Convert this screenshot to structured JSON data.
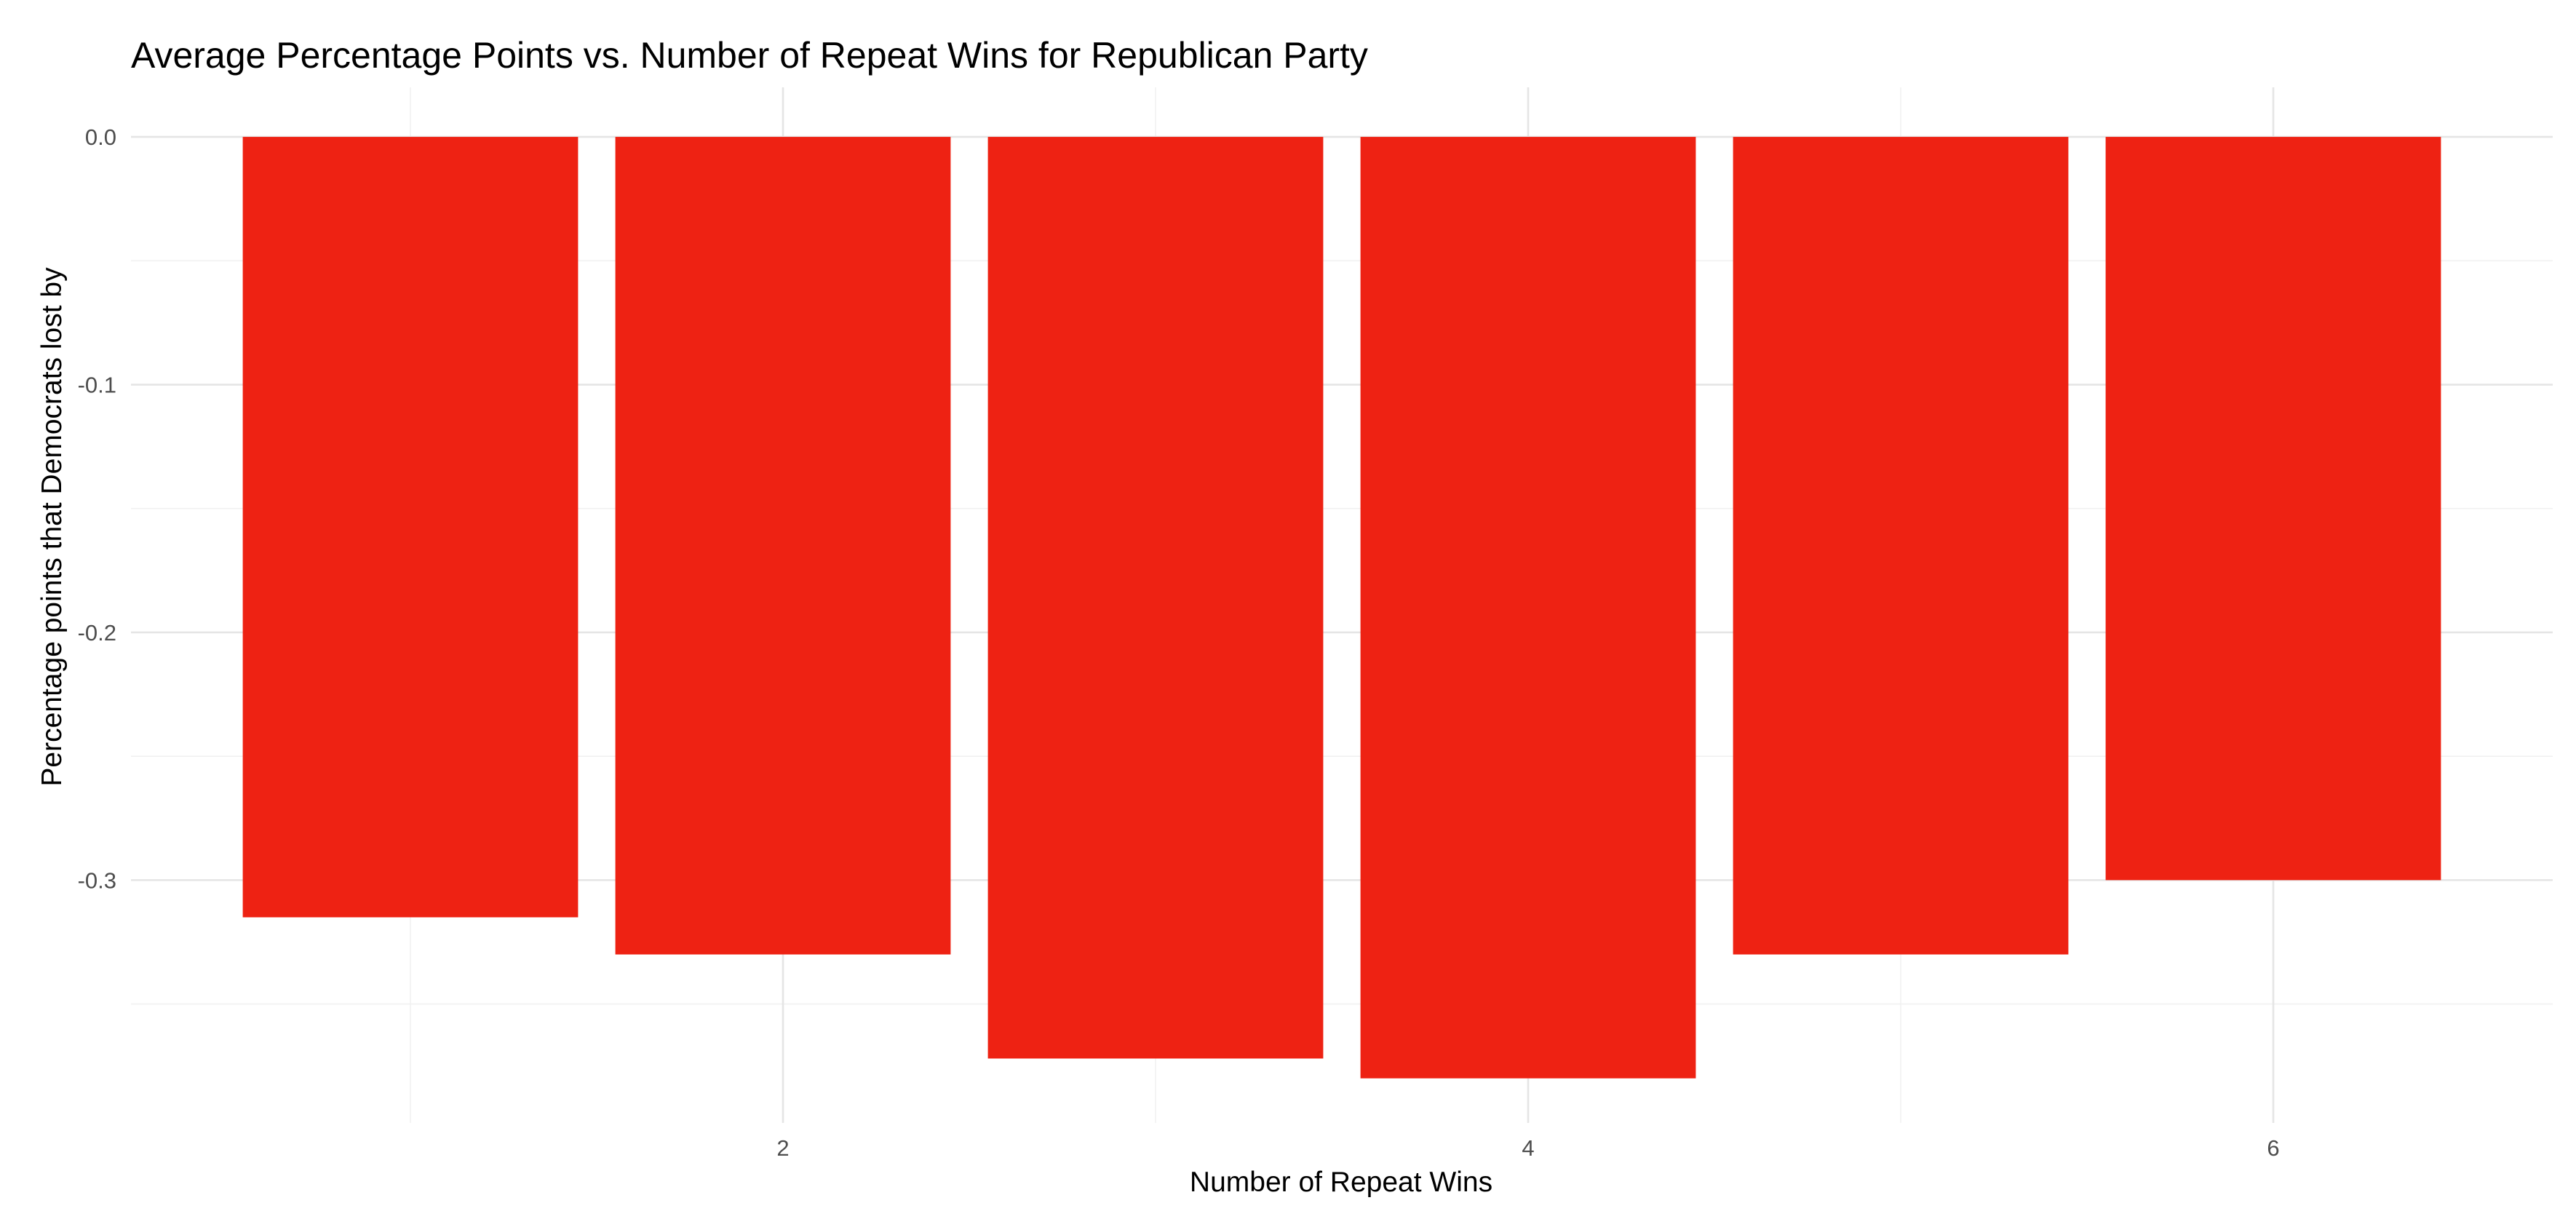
{
  "chart_data": {
    "type": "bar",
    "title": "Average Percentage Points vs. Number of Repeat Wins for Republican Party",
    "xlabel": "Number of Repeat Wins",
    "ylabel": "Percentage points that Democrats lost by",
    "x": [
      1,
      2,
      3,
      4,
      5,
      6
    ],
    "values": [
      -0.315,
      -0.33,
      -0.372,
      -0.38,
      -0.33,
      -0.3
    ],
    "xlim": [
      0.25,
      6.75
    ],
    "ylim": [
      -0.398,
      0.02
    ],
    "x_ticks": [
      2,
      4,
      6
    ],
    "x_tick_labels": [
      "2",
      "4",
      "6"
    ],
    "y_ticks": [
      0.0,
      -0.1,
      -0.2,
      -0.3
    ],
    "y_tick_labels": [
      "0.0",
      "-0.1",
      "-0.2",
      "-0.3"
    ],
    "bar_color": "#ee2213",
    "grid": true,
    "legend": "none"
  }
}
